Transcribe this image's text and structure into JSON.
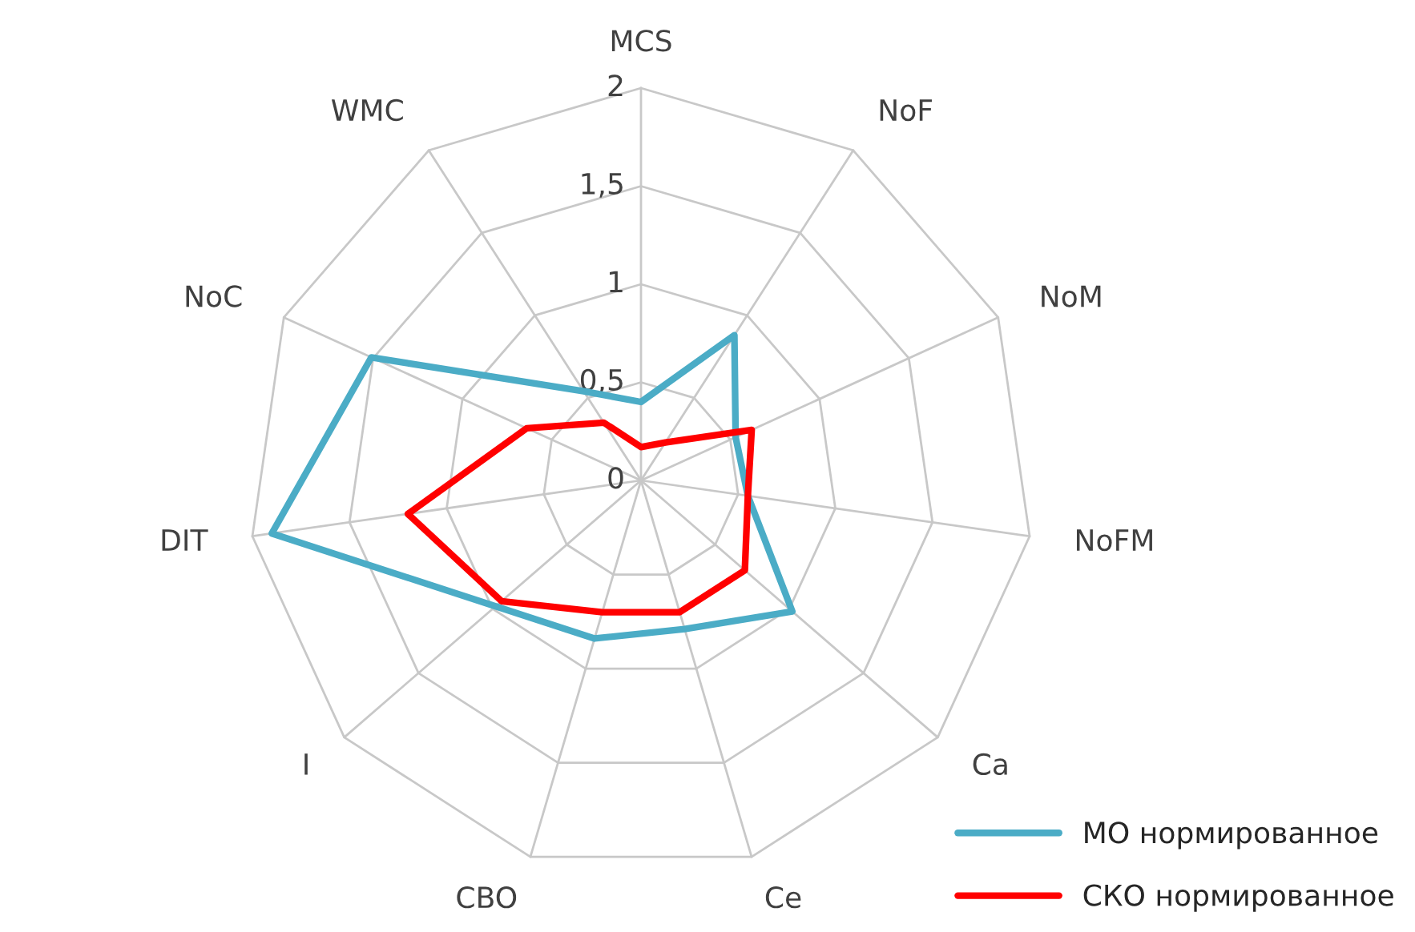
{
  "chart_data": {
    "type": "radar",
    "categories": [
      "MCS",
      "NoF",
      "NoM",
      "NoFM",
      "Ca",
      "Ce",
      "CBO",
      "I",
      "DIT",
      "NoC",
      "WMC"
    ],
    "series": [
      {
        "name": "МО нормированное",
        "color": "#4bacc6",
        "values": [
          0.4,
          0.88,
          0.53,
          0.55,
          1.02,
          0.79,
          0.84,
          0.98,
          1.9,
          1.51,
          0.54
        ]
      },
      {
        "name": "СКО нормированное",
        "color": "#ff0000",
        "values": [
          0.17,
          0.23,
          0.62,
          0.55,
          0.7,
          0.7,
          0.7,
          0.94,
          1.2,
          0.64,
          0.35
        ]
      }
    ],
    "ylim": [
      0,
      2
    ],
    "yticks": [
      0,
      {
        "value": 0.5,
        "label": "0,5"
      },
      1,
      {
        "value": 1.5,
        "label": "1,5"
      },
      2
    ],
    "grid": true,
    "legend": "bottom right",
    "marker": "none"
  }
}
